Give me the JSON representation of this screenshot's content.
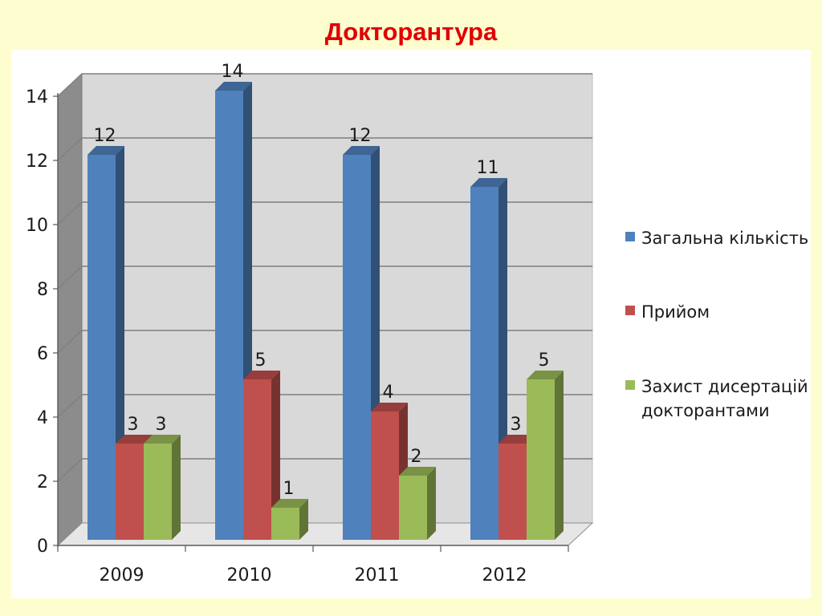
{
  "title": "Докторантура",
  "chart_data": {
    "type": "bar",
    "categories": [
      "2009",
      "2010",
      "2011",
      "2012"
    ],
    "series": [
      {
        "name": "Загальна кількість",
        "values": [
          12,
          14,
          12,
          11
        ],
        "color": "#4f81bd"
      },
      {
        "name": "Прийом",
        "values": [
          3,
          5,
          4,
          3
        ],
        "color": "#c0504d"
      },
      {
        "name": "Захист дисертацій докторантами",
        "values": [
          3,
          1,
          2,
          5
        ],
        "color": "#9bbb59"
      }
    ],
    "ylim": [
      0,
      14
    ],
    "yticks": [
      0,
      2,
      4,
      6,
      8,
      10,
      12,
      14
    ],
    "grid": true,
    "legend_position": "right",
    "style": "3d-clustered-column"
  }
}
